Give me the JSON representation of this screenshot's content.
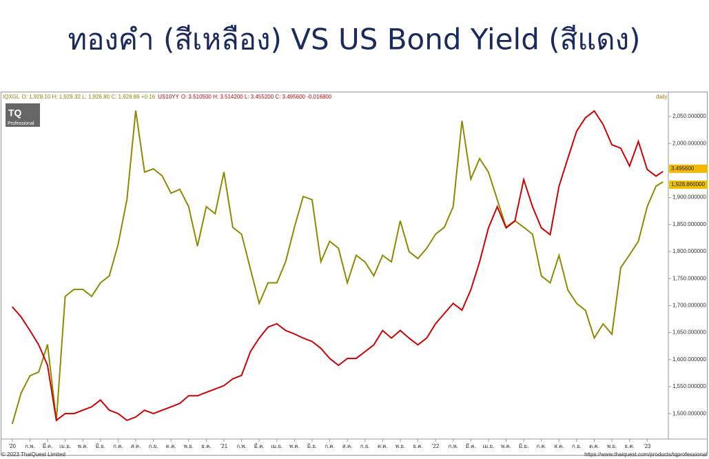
{
  "chart_data": {
    "type": "line",
    "title": "ทองคำ (สีเหลือง) VS US Bond Yield (สีแดง)",
    "period": "daily",
    "footer_left": "© 2023 ThaiQuest Limited",
    "footer_right": "https://www.thaiquest.com/products/tqprofessional",
    "logo": {
      "text": "TQ",
      "subtext": "Professional"
    },
    "x": [
      0,
      0.5,
      1,
      1.5,
      2,
      2.5,
      3,
      3.5,
      4,
      4.5,
      5,
      5.5,
      6,
      6.5,
      7,
      7.5,
      8,
      8.5,
      9,
      9.5,
      10,
      10.5,
      11,
      11.5,
      12,
      12.5,
      13,
      13.5,
      14,
      14.5,
      15,
      15.5,
      16,
      16.5,
      17,
      17.5,
      18,
      18.5,
      19,
      19.5,
      20,
      20.5,
      21,
      21.5,
      22,
      22.5,
      23,
      23.5,
      24,
      24.5,
      25,
      25.5,
      26,
      26.5,
      27,
      27.5,
      28,
      28.5,
      29,
      29.5,
      30,
      30.5,
      31,
      31.5,
      32,
      32.5,
      33,
      33.5,
      34,
      34.5,
      35,
      35.5,
      36,
      36.5,
      36.9
    ],
    "series": [
      {
        "name": "IQXGL",
        "ohlc": "O: 1,928.10 H: 1,929.32 L: 1,926.80 C: 1,928.86 +0.16",
        "color": "#8c8a00",
        "last_label": "1,928.860000",
        "values": [
          1481,
          1538,
          1570,
          1577,
          1628,
          1487,
          1717,
          1730,
          1730,
          1717,
          1742,
          1755,
          1813,
          1896,
          2061,
          1947,
          1953,
          1940,
          1908,
          1915,
          1883,
          1810,
          1883,
          1870,
          1947,
          1845,
          1832,
          1768,
          1704,
          1742,
          1742,
          1781,
          1845,
          1902,
          1896,
          1781,
          1819,
          1806,
          1742,
          1793,
          1781,
          1755,
          1793,
          1781,
          1857,
          1800,
          1787,
          1806,
          1832,
          1845,
          1883,
          2042,
          1934,
          1972,
          1947,
          1896,
          1845,
          1857,
          1845,
          1832,
          1755,
          1742,
          1793,
          1729,
          1704,
          1691,
          1640,
          1666,
          1647,
          1770,
          1794,
          1819,
          1883,
          1921,
          1928.86
        ]
      },
      {
        "name": "US10YY",
        "ohlc": "O: 3.510500 H: 3.514200 L: 3.455200 C: 3.495600 -0.016800",
        "color": "#cc0000",
        "axis": "y2",
        "last_label": "3.495600",
        "values": [
          1.9,
          1.78,
          1.62,
          1.45,
          1.21,
          0.56,
          0.64,
          0.64,
          0.68,
          0.72,
          0.8,
          0.68,
          0.64,
          0.56,
          0.6,
          0.68,
          0.64,
          0.68,
          0.72,
          0.76,
          0.85,
          0.85,
          0.89,
          0.93,
          0.97,
          1.05,
          1.09,
          1.37,
          1.53,
          1.66,
          1.7,
          1.62,
          1.58,
          1.53,
          1.49,
          1.41,
          1.29,
          1.21,
          1.29,
          1.29,
          1.37,
          1.45,
          1.62,
          1.53,
          1.62,
          1.53,
          1.45,
          1.53,
          1.7,
          1.82,
          1.94,
          1.86,
          2.1,
          2.43,
          2.83,
          3.08,
          2.83,
          2.91,
          3.4,
          3.08,
          2.83,
          2.75,
          3.32,
          3.65,
          3.97,
          4.13,
          4.21,
          4.05,
          3.81,
          3.77,
          3.56,
          3.85,
          3.52,
          3.44,
          3.4956
        ]
      }
    ],
    "xlim": [
      -0.5,
      37.2
    ],
    "xticks": [
      {
        "value": 0,
        "label": "'20"
      },
      {
        "value": 1,
        "label": "ก.พ."
      },
      {
        "value": 2,
        "label": "มี.ค."
      },
      {
        "value": 3,
        "label": "เม.ย."
      },
      {
        "value": 4,
        "label": "พ.ค."
      },
      {
        "value": 5,
        "label": "มิ.ย."
      },
      {
        "value": 6,
        "label": "ก.ค."
      },
      {
        "value": 7,
        "label": "ส.ค."
      },
      {
        "value": 8,
        "label": "ก.ย."
      },
      {
        "value": 9,
        "label": "ต.ค."
      },
      {
        "value": 10,
        "label": "พ.ย."
      },
      {
        "value": 11,
        "label": "ธ.ค."
      },
      {
        "value": 12,
        "label": "'21"
      },
      {
        "value": 13,
        "label": "ก.พ."
      },
      {
        "value": 14,
        "label": "มี.ค."
      },
      {
        "value": 15,
        "label": "เม.ย."
      },
      {
        "value": 16,
        "label": "พ.ค."
      },
      {
        "value": 17,
        "label": "มิ.ย."
      },
      {
        "value": 18,
        "label": "ก.ค."
      },
      {
        "value": 19,
        "label": "ส.ค."
      },
      {
        "value": 20,
        "label": "ก.ย."
      },
      {
        "value": 21,
        "label": "ต.ค."
      },
      {
        "value": 22,
        "label": "พ.ย."
      },
      {
        "value": 23,
        "label": "ธ.ค."
      },
      {
        "value": 24,
        "label": "'22"
      },
      {
        "value": 25,
        "label": "ก.พ."
      },
      {
        "value": 26,
        "label": "มี.ค."
      },
      {
        "value": 27,
        "label": "เม.ย."
      },
      {
        "value": 28,
        "label": "พ.ค."
      },
      {
        "value": 29,
        "label": "มิ.ย."
      },
      {
        "value": 30,
        "label": "ก.ค."
      },
      {
        "value": 31,
        "label": "ส.ค."
      },
      {
        "value": 32,
        "label": "ก.ย."
      },
      {
        "value": 33,
        "label": "ต.ค."
      },
      {
        "value": 34,
        "label": "พ.ย."
      },
      {
        "value": 35,
        "label": "ธ.ค."
      },
      {
        "value": 36,
        "label": "'23"
      }
    ],
    "ylim": [
      1453,
      2087
    ],
    "yticks": [
      {
        "value": 1500,
        "label": "1,500.000000"
      },
      {
        "value": 1550,
        "label": "1,550.000000"
      },
      {
        "value": 1600,
        "label": "1,600.000000"
      },
      {
        "value": 1650,
        "label": "1,650.000000"
      },
      {
        "value": 1700,
        "label": "1,700.000000"
      },
      {
        "value": 1750,
        "label": "1,750.000000"
      },
      {
        "value": 1800,
        "label": "1,800.000000"
      },
      {
        "value": 1850,
        "label": "1,850.000000"
      },
      {
        "value": 1900,
        "label": "1,900.000000"
      },
      {
        "value": 1950,
        "label": "1,950.000000"
      },
      {
        "value": 2000,
        "label": "2,000.000000"
      },
      {
        "value": 2050,
        "label": "2,050.000000"
      }
    ],
    "y2lim": [
      0.34,
      4.38
    ]
  }
}
